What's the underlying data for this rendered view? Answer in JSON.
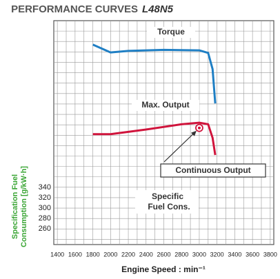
{
  "chart_data": {
    "type": "line",
    "title": "PERFORMANCE CURVES",
    "model": "L48N5",
    "x_label": "Engine Speed : min⁻¹",
    "y_label": [
      "Specification Fuel",
      "Consumption [g/kW·h]"
    ],
    "xlim": [
      1360,
      3840
    ],
    "xticks": [
      1400,
      1600,
      1800,
      2000,
      2200,
      2400,
      2600,
      2800,
      3000,
      3200,
      3400,
      3600,
      3800
    ],
    "ylim": [
      230,
      660
    ],
    "yticks": [
      260,
      280,
      300,
      320,
      340
    ],
    "grid": true,
    "series": [
      {
        "name": "Torque",
        "color": "#1f7fc4",
        "x": [
          1800,
          2000,
          2200,
          2600,
          3000,
          3100,
          3150,
          3180
        ],
        "values": [
          614,
          599,
          602,
          604,
          603,
          598,
          567,
          501
        ]
      },
      {
        "name": "Max. Output",
        "color": "#d0143c",
        "x": [
          1800,
          2000,
          2400,
          2800,
          3000,
          3100,
          3150,
          3180
        ],
        "values": [
          442,
          442,
          451,
          461,
          464,
          461,
          435,
          402
        ]
      }
    ],
    "annotations": [
      {
        "text": "Continuous Output",
        "x": 3000,
        "y": 454
      },
      {
        "text": "Specific Fuel Cons."
      }
    ]
  }
}
